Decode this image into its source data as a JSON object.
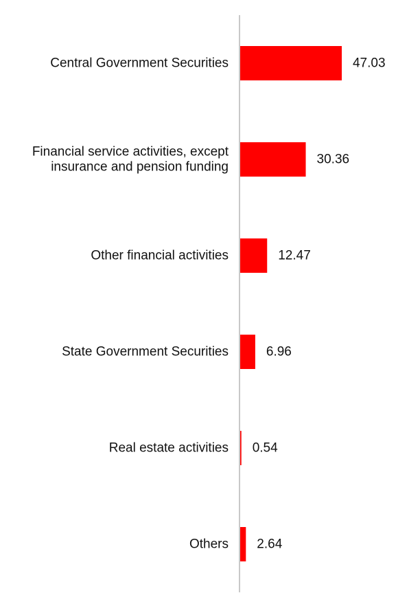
{
  "chart_data": {
    "type": "bar",
    "orientation": "horizontal",
    "categories": [
      [
        "Central Government Securities"
      ],
      [
        "Financial service activities, except",
        "insurance and pension funding"
      ],
      [
        "Other financial activities"
      ],
      [
        "State Government Securities"
      ],
      [
        "Real estate activities"
      ],
      [
        "Others"
      ]
    ],
    "values": [
      47.03,
      30.36,
      12.47,
      6.96,
      0.54,
      2.64
    ],
    "value_labels": [
      "47.03",
      "30.36",
      "12.47",
      "6.96",
      "0.54",
      "2.64"
    ],
    "title": "",
    "xlabel": "",
    "ylabel": "",
    "xlim": [
      0,
      75
    ],
    "bar_color": "#ff0000",
    "axis_color": "#c8c8c8",
    "grid": false,
    "legend": "none"
  }
}
